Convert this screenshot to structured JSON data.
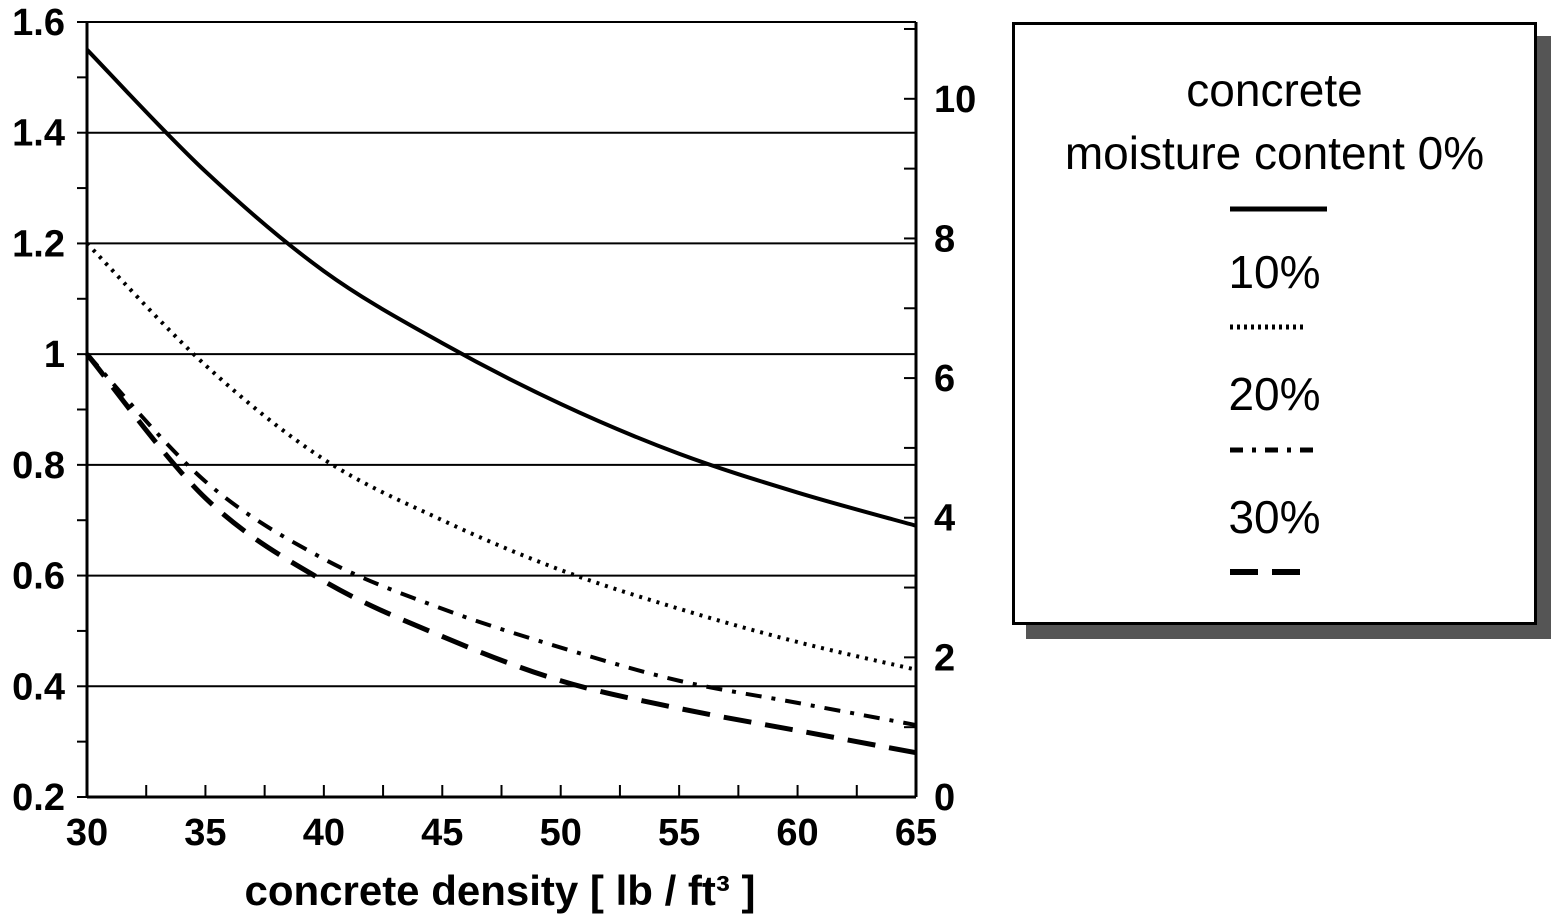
{
  "chart_data": {
    "type": "line",
    "xlabel": "concrete density [ lb / ft³ ]",
    "ylabel": "",
    "y2label": "",
    "x_ticks": [
      "30",
      "35",
      "40",
      "45",
      "50",
      "55",
      "60",
      "65"
    ],
    "y_ticks": [
      "0.2",
      "0.4",
      "0.6",
      "0.8",
      "1",
      "1.2",
      "1.4",
      "1.6"
    ],
    "y2_ticks": [
      "0",
      "2",
      "4",
      "6",
      "8",
      "10"
    ],
    "xlim": [
      30,
      65
    ],
    "ylim": [
      0.2,
      1.6
    ],
    "y2lim": [
      0,
      11.1
    ],
    "grid": "horizontal",
    "legend_position": "right",
    "legend_title_lines": [
      "concrete",
      "moisture content 0%"
    ],
    "x": [
      30,
      35,
      40,
      45,
      50,
      55,
      60,
      65
    ],
    "series": [
      {
        "label": "0%",
        "style": "solid",
        "values": [
          1.55,
          1.33,
          1.15,
          1.02,
          0.91,
          0.82,
          0.75,
          0.69
        ]
      },
      {
        "label": "10%",
        "style": "dotted",
        "values": [
          1.2,
          0.98,
          0.81,
          0.7,
          0.61,
          0.54,
          0.48,
          0.43
        ]
      },
      {
        "label": "20%",
        "style": "dashdot",
        "values": [
          1.0,
          0.77,
          0.63,
          0.54,
          0.47,
          0.41,
          0.37,
          0.33
        ]
      },
      {
        "label": "30%",
        "style": "dashed",
        "values": [
          1.0,
          0.74,
          0.59,
          0.49,
          0.41,
          0.36,
          0.32,
          0.28
        ]
      }
    ]
  }
}
